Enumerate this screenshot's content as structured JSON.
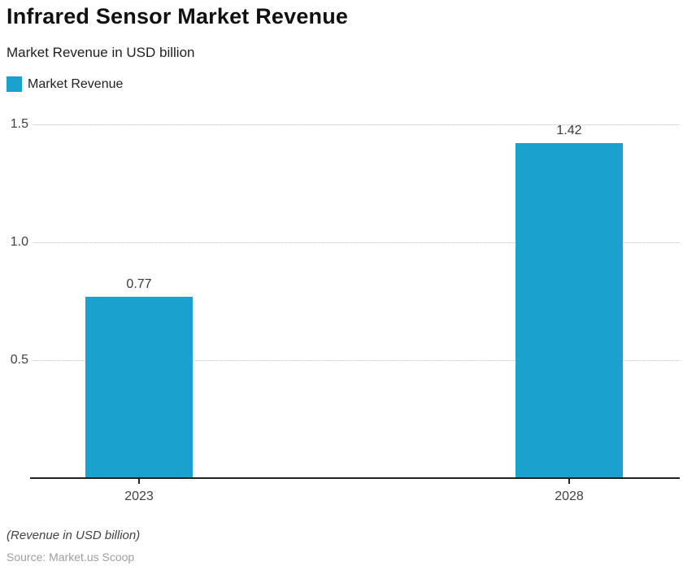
{
  "chart_data": {
    "type": "bar",
    "title": "Infrared Sensor Market Revenue",
    "subtitle": "Market Revenue in USD billion",
    "legend": [
      {
        "label": "Market Revenue",
        "color": "#1BA1CD"
      }
    ],
    "categories": [
      "2023",
      "2028"
    ],
    "series": [
      {
        "name": "Market Revenue",
        "values": [
          0.77,
          1.42
        ]
      }
    ],
    "value_labels": [
      "0.77",
      "1.42"
    ],
    "ylabel": "",
    "xlabel": "",
    "ylim": [
      0,
      1.5
    ],
    "yticks": [
      {
        "value": 0.5,
        "label": "0.5"
      },
      {
        "value": 1.0,
        "label": "1.0"
      },
      {
        "value": 1.5,
        "label": "1.5"
      }
    ],
    "grid": "horizontal",
    "legend_position": "top-left",
    "bar_color": "#1BA1CD"
  },
  "footer": {
    "note": "(Revenue in USD billion)",
    "source": "Source: Market.us Scoop"
  }
}
